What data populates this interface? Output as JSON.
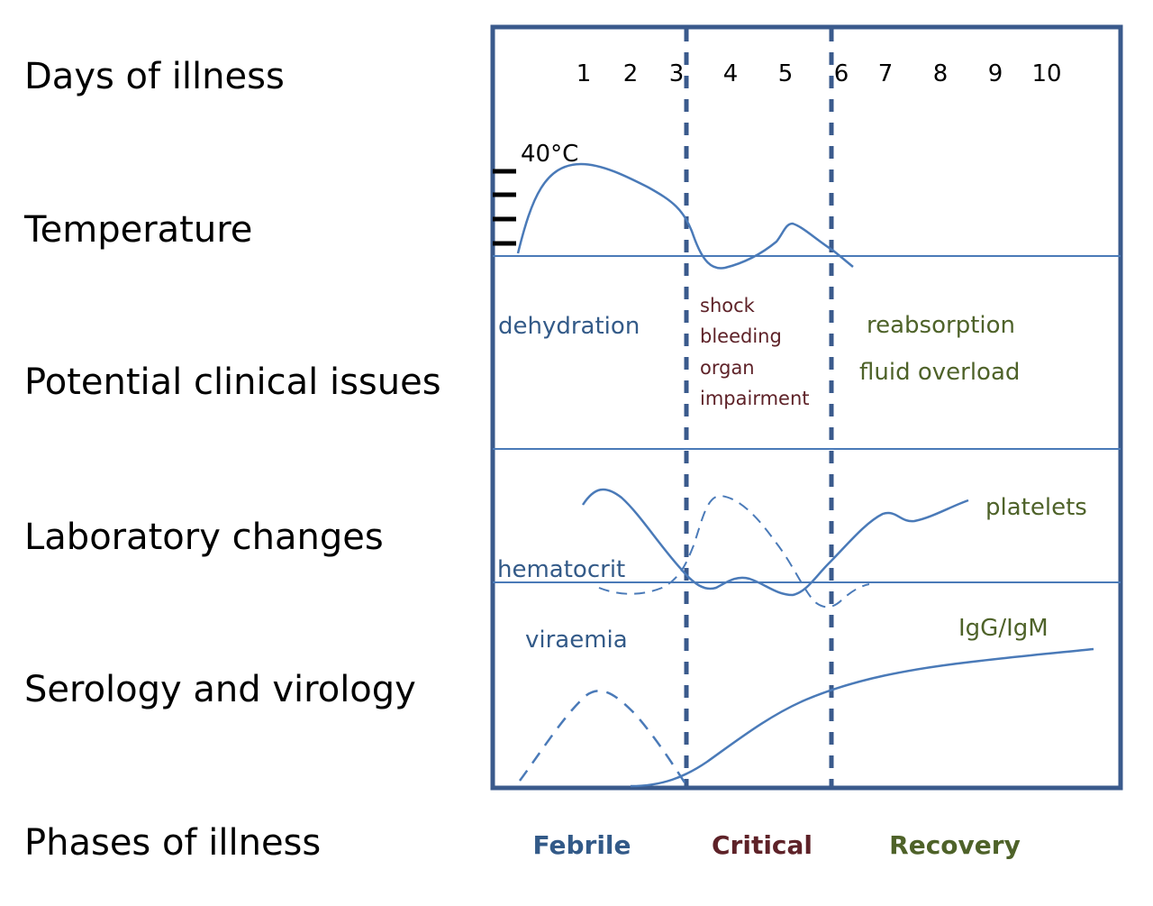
{
  "rows": {
    "days": "Days of illness",
    "temperature": "Temperature",
    "clinical": "Potential clinical issues",
    "laboratory": "Laboratory changes",
    "serology": "Serology and virology",
    "phases": "Phases of illness"
  },
  "days": [
    "1",
    "2",
    "3",
    "4",
    "5",
    "6",
    "7",
    "8",
    "9",
    "10"
  ],
  "temperature_label": "40°C",
  "clinical_issues": {
    "febrile": "dehydration",
    "critical": [
      "shock",
      "bleeding",
      "organ",
      "impairment"
    ],
    "recovery": [
      "reabsorption",
      "fluid overload"
    ]
  },
  "lab_labels": {
    "platelets": "platelets",
    "hematocrit": "hematocrit"
  },
  "serology_labels": {
    "viraemia": "viraemia",
    "igg_igm": "IgG/IgM"
  },
  "phases": {
    "febrile": "Febrile",
    "critical": "Critical",
    "recovery": "Recovery"
  },
  "colors": {
    "frame": "#3a5a8c",
    "curve": "#4a7ab8",
    "febrile": "#335a88",
    "critical": "#5e2228",
    "recovery": "#4e6229"
  }
}
